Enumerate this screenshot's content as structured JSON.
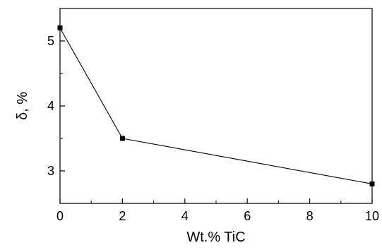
{
  "chart_data": {
    "type": "line",
    "title": "",
    "xlabel": "Wt.% TiC",
    "ylabel": "δ, %",
    "xlim": [
      0,
      10
    ],
    "ylim": [
      2.5,
      5.5
    ],
    "x_ticks": [
      0,
      2,
      4,
      6,
      8,
      10
    ],
    "y_ticks": [
      3,
      4,
      5
    ],
    "x_tick_labels": [
      "0",
      "2",
      "4",
      "6",
      "8",
      "10"
    ],
    "y_tick_labels": [
      "3",
      "4",
      "5"
    ],
    "grid": false,
    "legend": "none",
    "series": [
      {
        "x": [
          0,
          2,
          10
        ],
        "y": [
          5.2,
          3.5,
          2.8
        ],
        "marker": "square",
        "color": "#000000"
      }
    ]
  }
}
